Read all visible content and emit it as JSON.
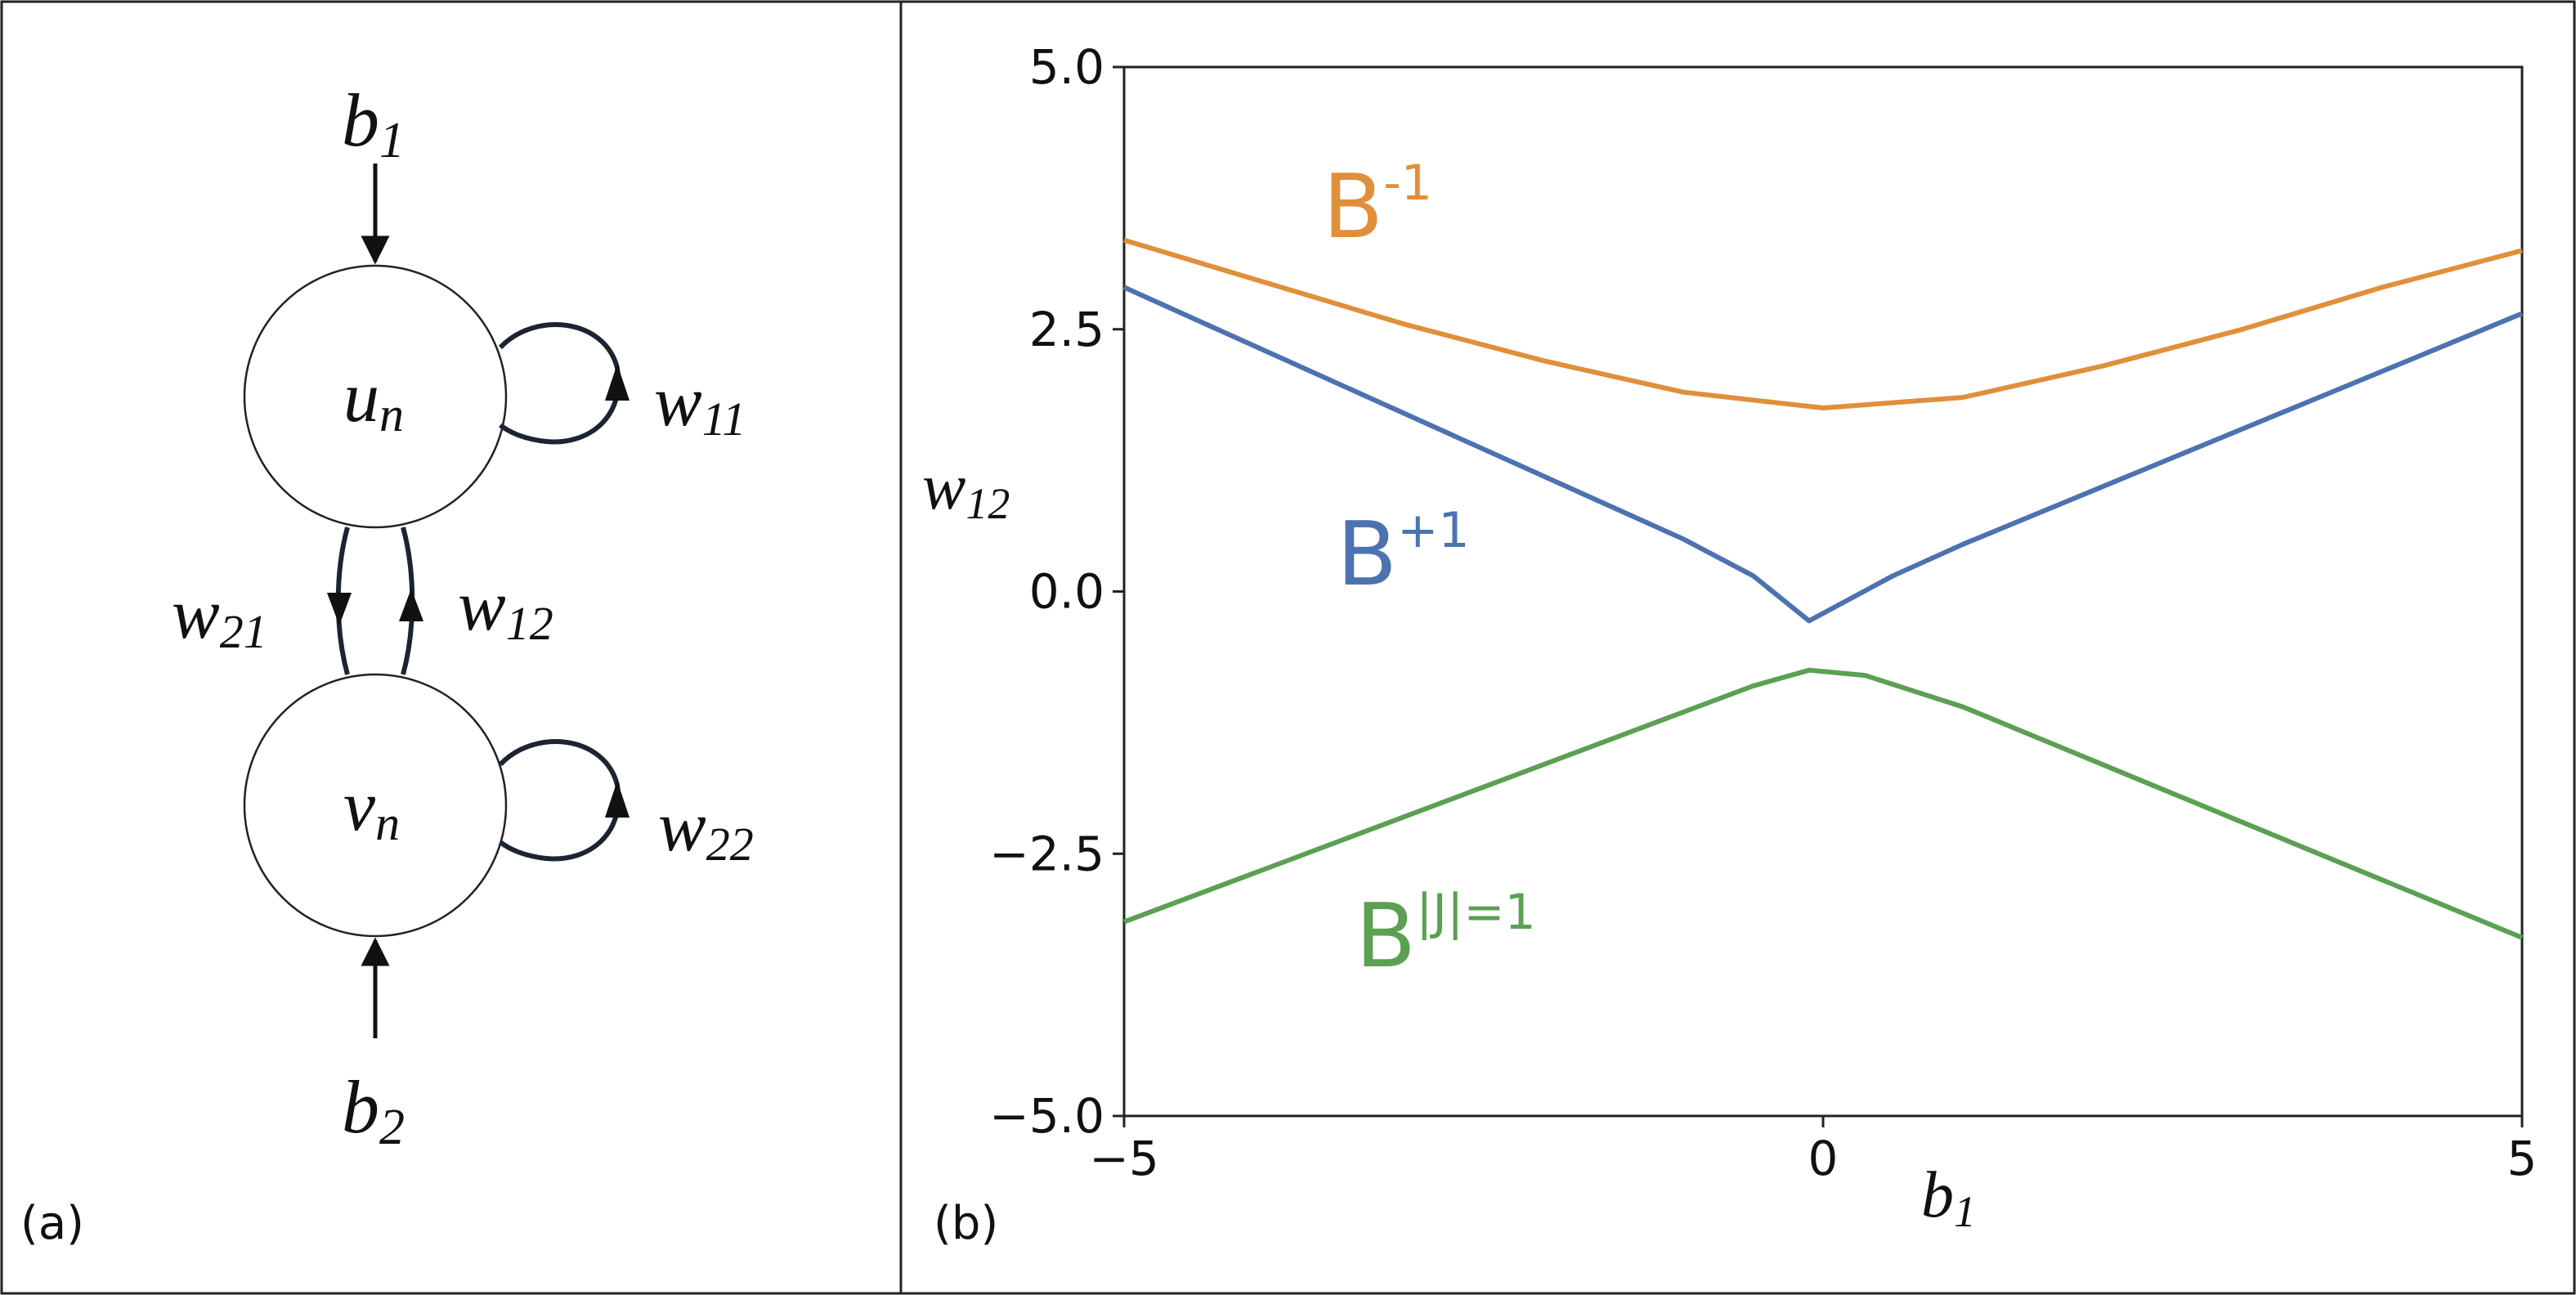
{
  "panel_a": {
    "label": "(a)",
    "node_top": {
      "main": "u",
      "sub": "n"
    },
    "node_bottom": {
      "main": "v",
      "sub": "n"
    },
    "input_top": {
      "main": "b",
      "sub": "1"
    },
    "input_bottom": {
      "main": "b",
      "sub": "2"
    },
    "w11": {
      "main": "w",
      "sub": "11"
    },
    "w21": {
      "main": "w",
      "sub": "21"
    },
    "w12": {
      "main": "w",
      "sub": "12"
    },
    "w22": {
      "main": "w",
      "sub": "22"
    }
  },
  "panel_b": {
    "label": "(b)",
    "xlabel": {
      "main": "b",
      "sub": "1"
    },
    "ylabel": {
      "main": "w",
      "sub": "12"
    }
  },
  "chart_data": {
    "type": "line",
    "title": "",
    "xlim": [
      -5,
      5
    ],
    "ylim": [
      -5,
      5
    ],
    "xticks": [
      -5,
      0,
      5
    ],
    "xtick_labels": [
      "−5",
      "0",
      "5"
    ],
    "yticks": [
      5.0,
      2.5,
      0.0,
      -2.5,
      -5.0
    ],
    "ytick_labels": [
      "5.0",
      "2.5",
      "0.0",
      "−2.5",
      "−5.0"
    ],
    "grid": false,
    "series": [
      {
        "name": "B^-1",
        "label_base": "B",
        "label_sup": "-1",
        "color": "#E08F3A",
        "x": [
          -5,
          -4,
          -3,
          -2,
          -1,
          0,
          1,
          2,
          3,
          4,
          5
        ],
        "y": [
          3.35,
          2.95,
          2.55,
          2.2,
          1.9,
          1.75,
          1.85,
          2.15,
          2.5,
          2.9,
          3.25
        ]
      },
      {
        "name": "B^+1",
        "label_base": "B",
        "label_sup": "+1",
        "color": "#4C72B0",
        "x": [
          -5,
          -4,
          -3,
          -2,
          -1,
          -0.5,
          -0.1,
          0.5,
          1,
          2,
          3,
          4,
          5
        ],
        "y": [
          2.9,
          2.3,
          1.7,
          1.1,
          0.5,
          0.15,
          -0.28,
          0.15,
          0.45,
          1.0,
          1.55,
          2.1,
          2.65
        ]
      },
      {
        "name": "B^|J|=1",
        "label_base": "B",
        "label_sup": "|J|=1",
        "color": "#5BA053",
        "x": [
          -5,
          -4,
          -3,
          -2,
          -1,
          -0.5,
          -0.1,
          0.3,
          1,
          2,
          3,
          4,
          5
        ],
        "y": [
          -3.15,
          -2.65,
          -2.15,
          -1.65,
          -1.15,
          -0.9,
          -0.75,
          -0.8,
          -1.1,
          -1.65,
          -2.2,
          -2.75,
          -3.3
        ]
      }
    ]
  }
}
